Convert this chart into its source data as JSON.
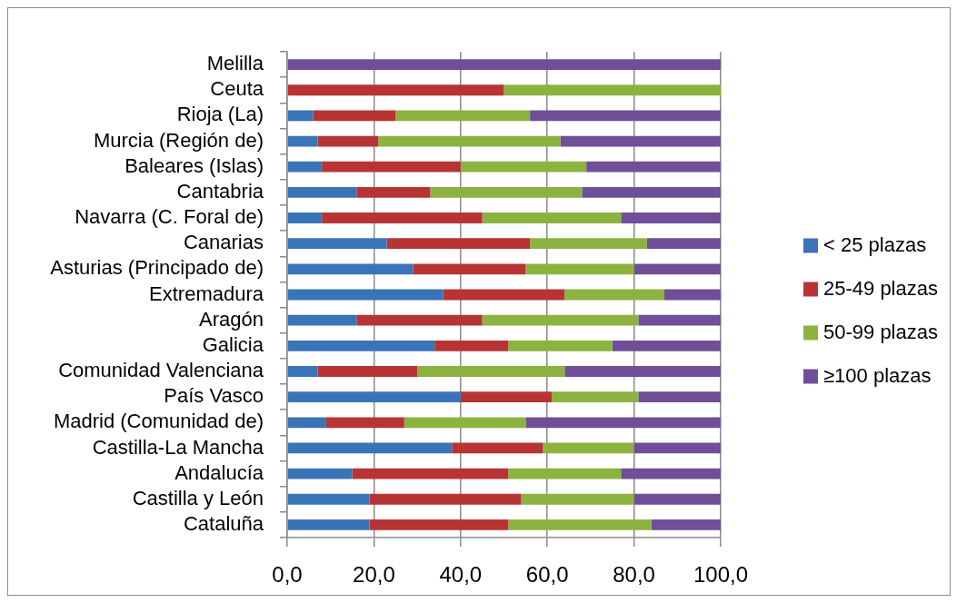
{
  "chart_data": {
    "type": "bar",
    "orientation": "horizontal",
    "stacked": true,
    "categories": [
      "Melilla",
      "Ceuta",
      "Rioja (La)",
      "Murcia (Región de)",
      "Baleares (Islas)",
      "Cantabria",
      "Navarra (C. Foral de)",
      "Canarias",
      "Asturias (Principado de)",
      "Extremadura",
      "Aragón",
      "Galicia",
      "Comunidad Valenciana",
      "País Vasco",
      "Madrid (Comunidad de)",
      "Castilla-La Mancha",
      "Andalucía",
      "Castilla y León",
      "Cataluña"
    ],
    "series": [
      {
        "name": "< 25 plazas",
        "color": "#3a74b8",
        "values": [
          0,
          0,
          6,
          7,
          8,
          16,
          8,
          23,
          29,
          36,
          16,
          34,
          7,
          40,
          9,
          38,
          15,
          19,
          19
        ]
      },
      {
        "name": "25-49 plazas",
        "color": "#b83434",
        "values": [
          0,
          50,
          19,
          14,
          32,
          17,
          37,
          33,
          26,
          28,
          29,
          17,
          23,
          21,
          18,
          21,
          36,
          35,
          32
        ]
      },
      {
        "name": "50-99 plazas",
        "color": "#8cb33f",
        "values": [
          0,
          50,
          31,
          42,
          29,
          35,
          32,
          27,
          25,
          23,
          36,
          24,
          34,
          20,
          28,
          21,
          26,
          26,
          33
        ]
      },
      {
        "name": "≥100 plazas",
        "color": "#6f4f98",
        "values": [
          100,
          0,
          44,
          37,
          31,
          32,
          23,
          17,
          20,
          13,
          19,
          25,
          36,
          19,
          45,
          20,
          23,
          20,
          16
        ]
      }
    ],
    "xlim": [
      0,
      100
    ],
    "xticks": [
      {
        "value": 0,
        "label": "0,0"
      },
      {
        "value": 20,
        "label": "20,0"
      },
      {
        "value": 40,
        "label": "40,0"
      },
      {
        "value": 60,
        "label": "60,0"
      },
      {
        "value": 80,
        "label": "80,0"
      },
      {
        "value": 100,
        "label": "100,0"
      }
    ],
    "grid": "x",
    "legend": "right"
  }
}
